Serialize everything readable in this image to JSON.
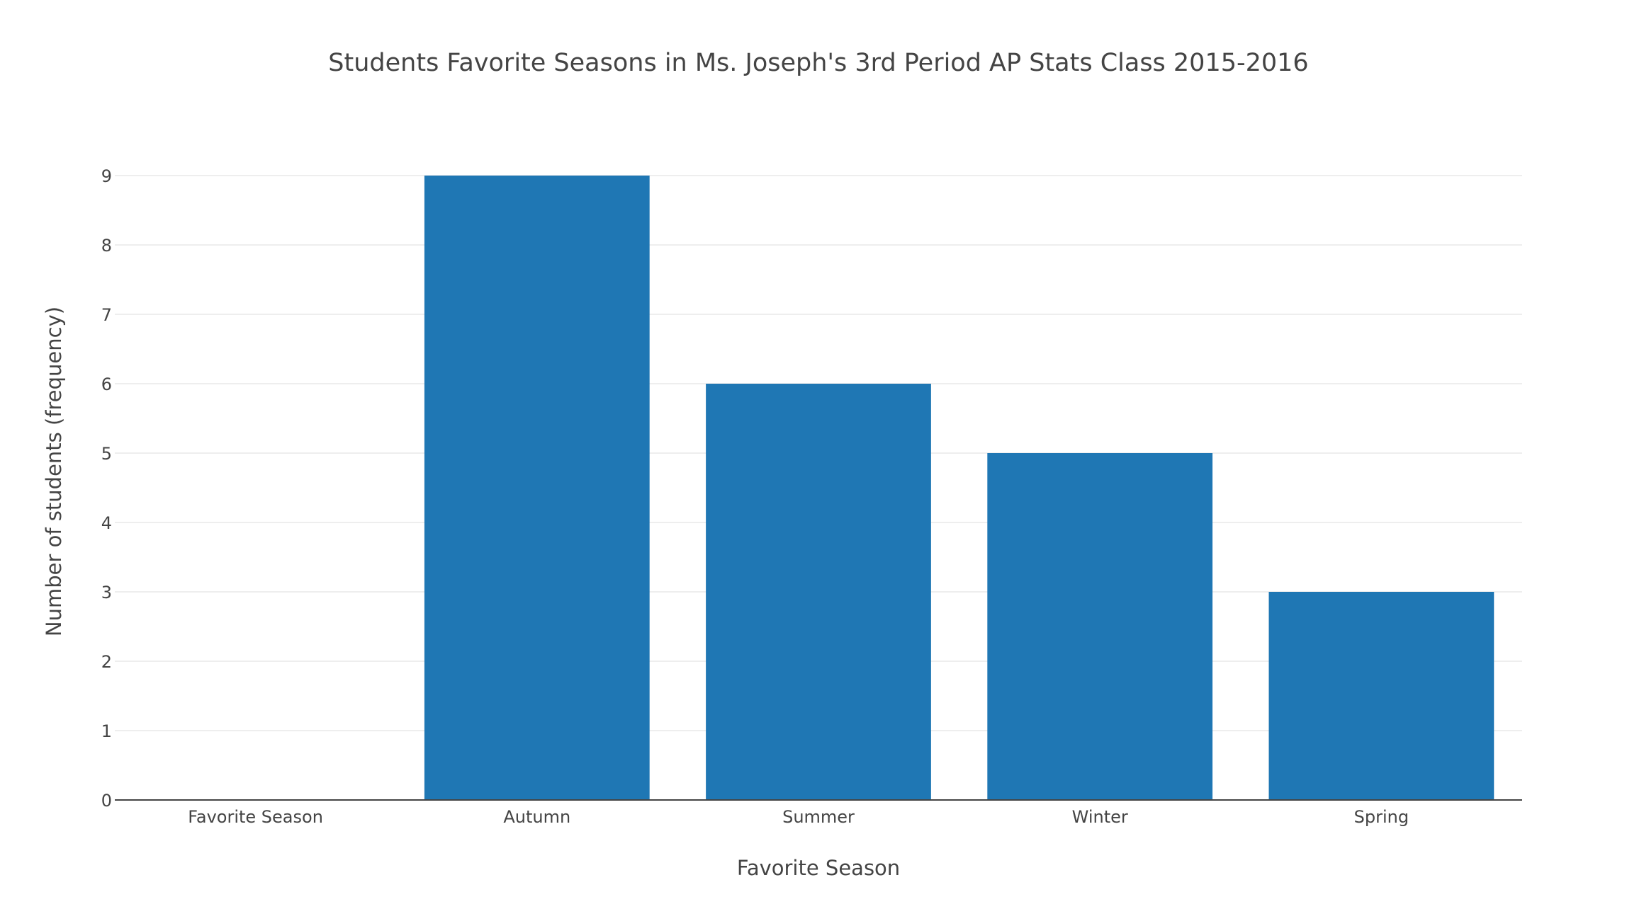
{
  "chart_data": {
    "type": "bar",
    "title": "Students Favorite Seasons in Ms. Joseph's 3rd Period AP Stats Class 2015-2016",
    "xlabel": "Favorite Season",
    "ylabel": "Number of students (frequency)",
    "categories": [
      "Favorite Season",
      "Autumn",
      "Summer",
      "Winter",
      "Spring"
    ],
    "values": [
      0,
      9,
      6,
      5,
      3
    ],
    "ylim": [
      0,
      9
    ],
    "yticks": [
      "0",
      "1",
      "2",
      "3",
      "4",
      "5",
      "6",
      "7",
      "8",
      "9"
    ],
    "grid": true,
    "legend": "none",
    "bar_color": "#1f77b4"
  }
}
